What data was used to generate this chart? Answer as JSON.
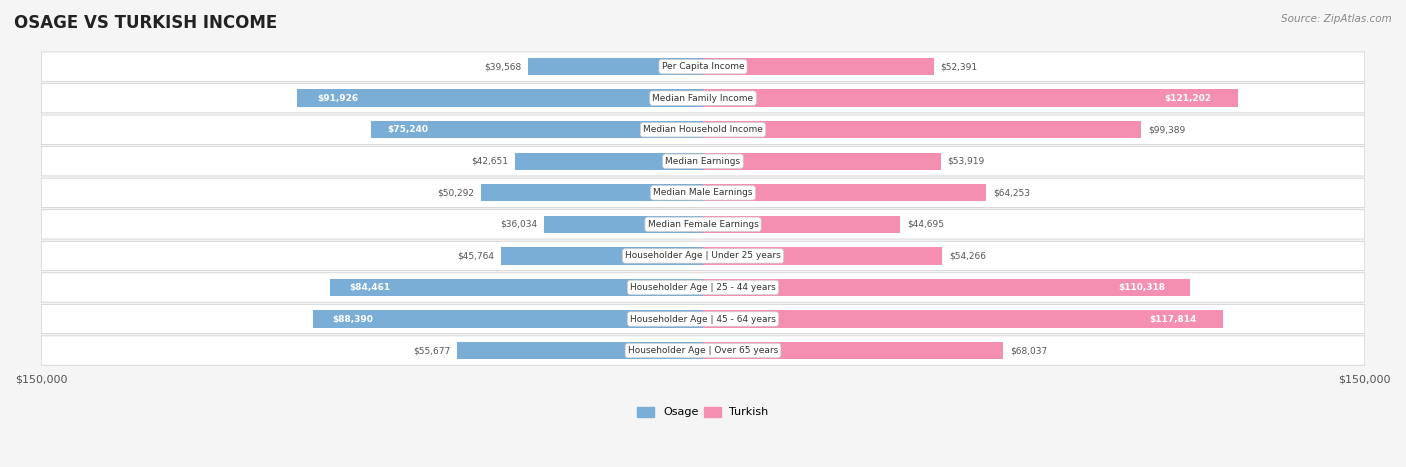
{
  "title": "OSAGE VS TURKISH INCOME",
  "source": "Source: ZipAtlas.com",
  "categories": [
    "Per Capita Income",
    "Median Family Income",
    "Median Household Income",
    "Median Earnings",
    "Median Male Earnings",
    "Median Female Earnings",
    "Householder Age | Under 25 years",
    "Householder Age | 25 - 44 years",
    "Householder Age | 45 - 64 years",
    "Householder Age | Over 65 years"
  ],
  "osage_values": [
    39568,
    91926,
    75240,
    42651,
    50292,
    36034,
    45764,
    84461,
    88390,
    55677
  ],
  "turkish_values": [
    52391,
    121202,
    99389,
    53919,
    64253,
    44695,
    54266,
    110318,
    117814,
    68037
  ],
  "osage_labels": [
    "$39,568",
    "$91,926",
    "$75,240",
    "$42,651",
    "$50,292",
    "$36,034",
    "$45,764",
    "$84,461",
    "$88,390",
    "$55,677"
  ],
  "turkish_labels": [
    "$52,391",
    "$121,202",
    "$99,389",
    "$53,919",
    "$64,253",
    "$44,695",
    "$54,266",
    "$110,318",
    "$117,814",
    "$68,037"
  ],
  "max_value": 150000,
  "osage_color": "#7aaed6",
  "osage_color_dark": "#5b8fc4",
  "turkish_color": "#f48fb1",
  "turkish_color_dark": "#e91e8c",
  "osage_text_threshold": 75000,
  "turkish_text_threshold": 100000,
  "bg_color": "#f5f5f5",
  "bar_bg_color": "#e8e8e8",
  "row_bg_color": "#ffffff",
  "row_alt_color": "#f0f0f0"
}
